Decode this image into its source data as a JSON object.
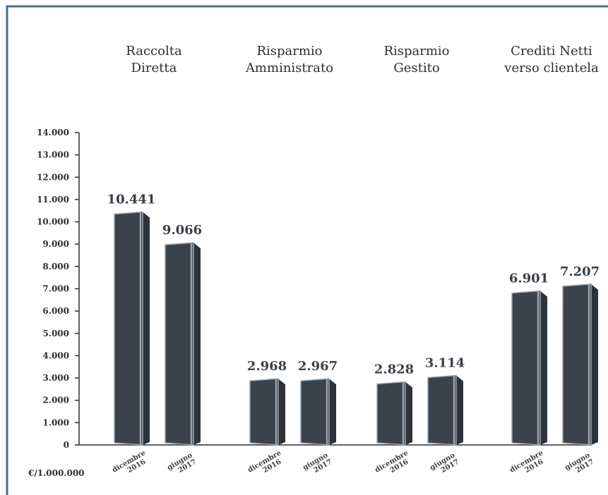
{
  "chart_data": {
    "type": "bar",
    "unit_label": "€/1.000.000",
    "ylim": [
      0,
      14000
    ],
    "y_ticks": [
      0,
      1000,
      2000,
      3000,
      4000,
      5000,
      6000,
      7000,
      8000,
      9000,
      10000,
      11000,
      12000,
      13000,
      14000
    ],
    "y_tick_labels": [
      "0",
      "1.000",
      "2.000",
      "3.000",
      "4.000",
      "5.000",
      "6.000",
      "7.000",
      "8.000",
      "9.000",
      "10.000",
      "11.000",
      "12.000",
      "13.000",
      "14.000"
    ],
    "grid": false,
    "categories": [
      [
        "dicembre",
        "2016"
      ],
      [
        "giugno",
        "2017"
      ]
    ],
    "groups": [
      {
        "title": [
          "Raccolta",
          "Diretta"
        ],
        "values": [
          10441,
          9066
        ],
        "value_labels": [
          "10.441",
          "9.066"
        ]
      },
      {
        "title": [
          "Risparmio",
          "Amministrato"
        ],
        "values": [
          2968,
          2967
        ],
        "value_labels": [
          "2.968",
          "2.967"
        ]
      },
      {
        "title": [
          "Risparmio",
          "Gestito"
        ],
        "values": [
          2828,
          3114
        ],
        "value_labels": [
          "2.828",
          "3.114"
        ]
      },
      {
        "title": [
          "Crediti Netti",
          "verso clientela"
        ],
        "values": [
          6901,
          7207
        ],
        "value_labels": [
          "6.901",
          "7.207"
        ]
      }
    ],
    "colors": {
      "bar_front": "#3a434c",
      "bar_side": "#2c333a",
      "bar_edge": "#9aa3ab",
      "frame": "#4a6f8f",
      "axis": "#2b2f36"
    }
  }
}
